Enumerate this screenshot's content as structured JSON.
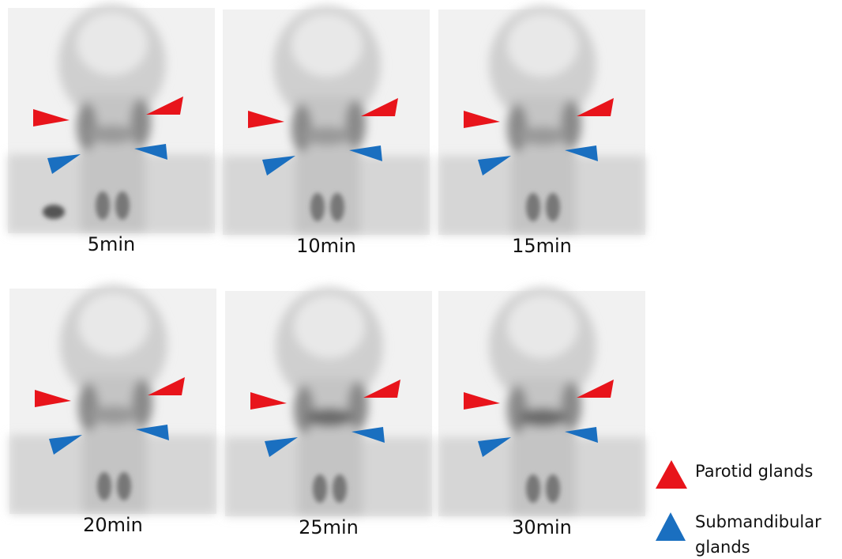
{
  "panels": [
    {
      "label": "5min"
    },
    {
      "label": "10min"
    },
    {
      "label": "15min"
    },
    {
      "label": "20min"
    },
    {
      "label": "25min"
    },
    {
      "label": "30min"
    }
  ],
  "legend": {
    "parotid": "Parotid glands",
    "submandibular": "Submandibular glands"
  }
}
